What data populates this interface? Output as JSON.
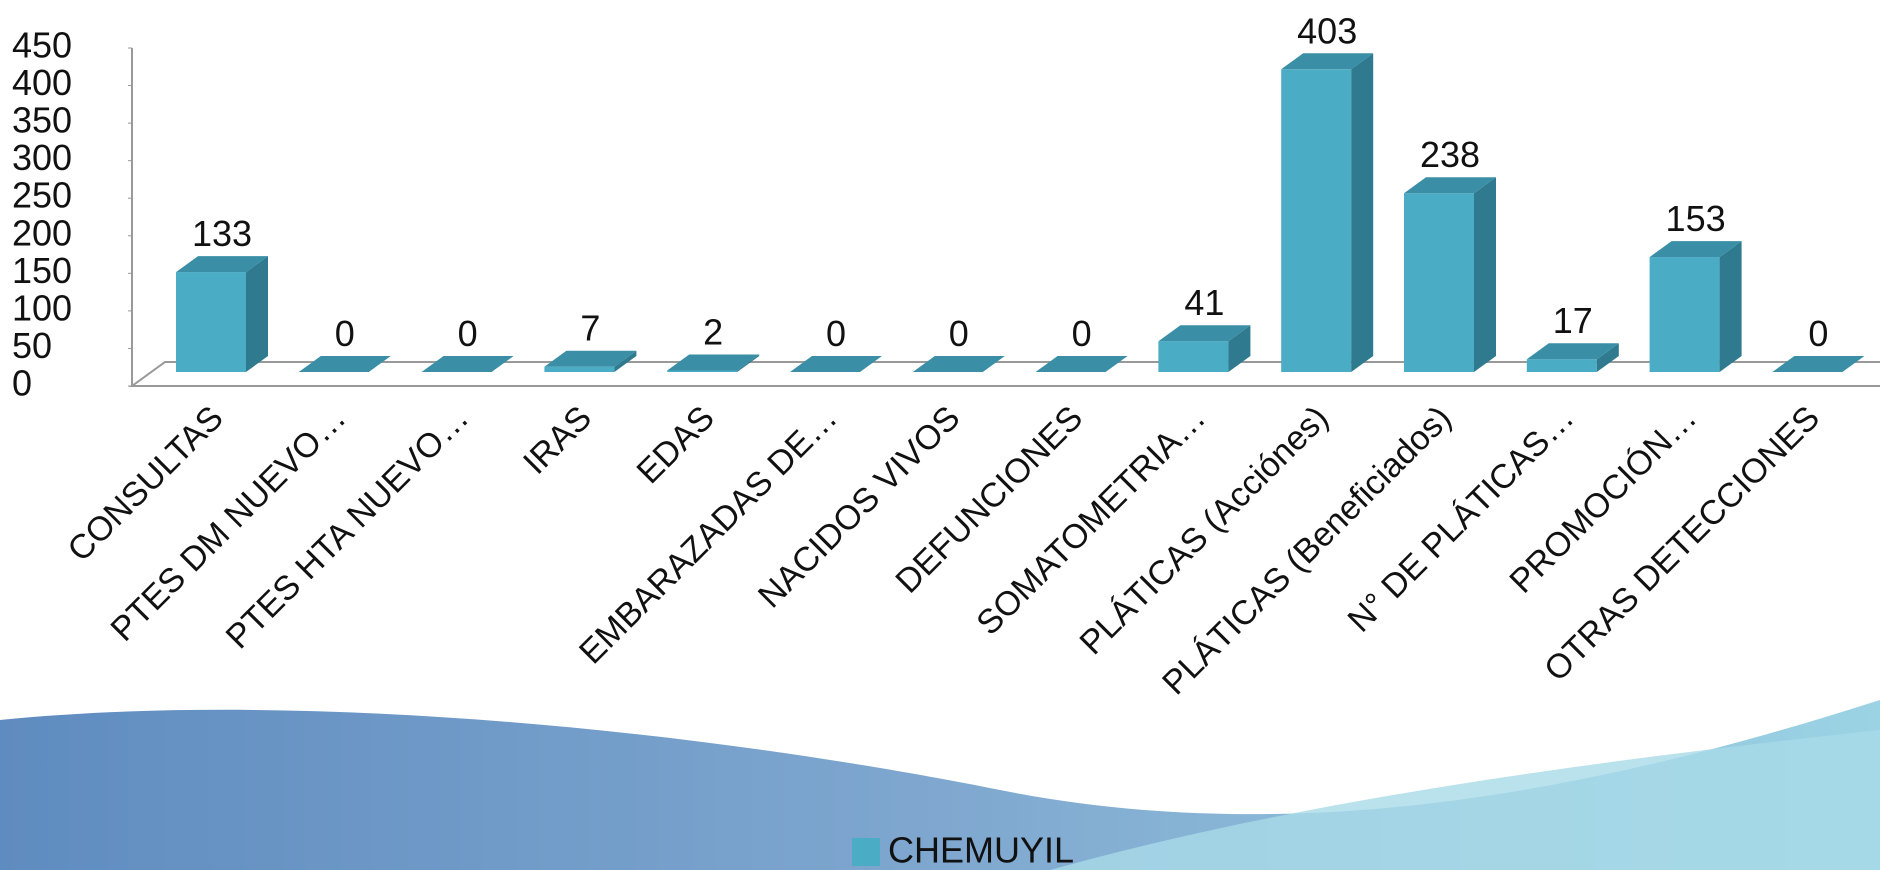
{
  "chart_data": {
    "type": "bar3d",
    "categories": [
      "CONSULTAS",
      "PTES DM NUEVO…",
      "PTES HTA NUEVO…",
      "IRAS",
      "EDAS",
      "EMBARAZADAS DE…",
      "NACIDOS VIVOS",
      "DEFUNCIONES",
      "SOMATOMETRIA…",
      "PLÁTICAS (Acciónes)",
      "PLÁTICAS (Beneficiados)",
      "N° DE PLÁTICAS…",
      "PROMOCIÓN…",
      "OTRAS DETECCIONES"
    ],
    "series": [
      {
        "name": "CHEMUYIL",
        "color": "#4bacc6",
        "values": [
          133,
          0,
          0,
          7,
          2,
          0,
          0,
          0,
          41,
          403,
          238,
          17,
          153,
          0
        ]
      }
    ],
    "ylim": [
      0,
      450
    ],
    "yticks": [
      0,
      50,
      100,
      150,
      200,
      250,
      300,
      350,
      400,
      450
    ],
    "legend": "bottom"
  }
}
